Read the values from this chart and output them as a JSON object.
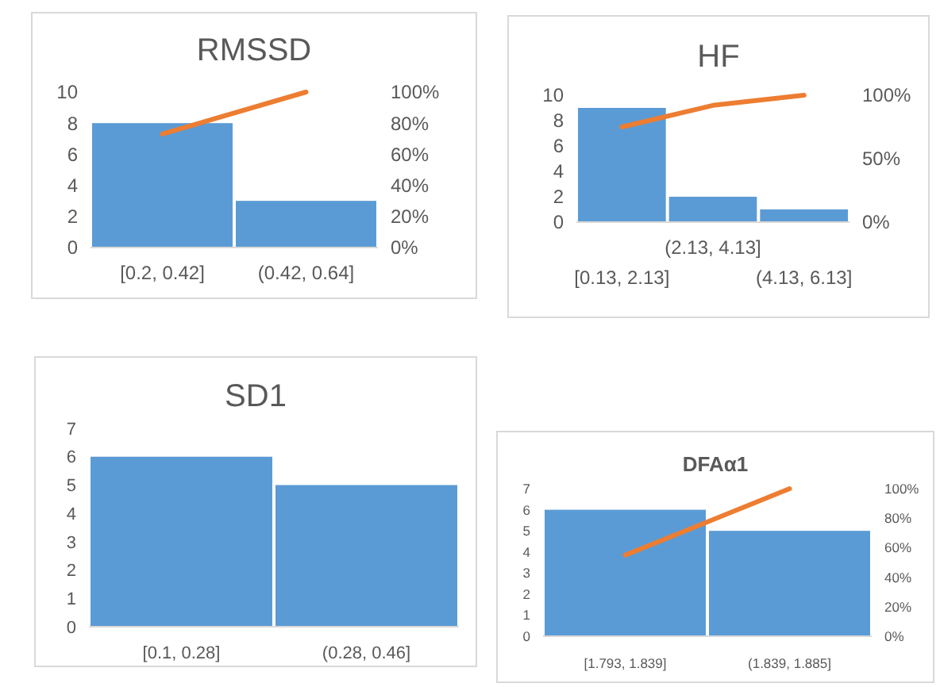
{
  "chart_data": [
    {
      "type": "bar",
      "title": "RMSSD",
      "categories": [
        "[0.2, 0.42]",
        "(0.42, 0.64]"
      ],
      "series": [
        {
          "color": "#5b9bd5",
          "values": [
            8,
            3
          ]
        },
        {
          "type": "line",
          "axis": "y2",
          "color": "#ed7d31",
          "values": [
            73,
            100
          ]
        }
      ],
      "ylim": [
        0,
        10
      ],
      "yticks": [
        0,
        2,
        4,
        6,
        8,
        10
      ],
      "y2lim": [
        0,
        100
      ],
      "y2ticks": [
        {
          "value": 0,
          "label": "0%"
        },
        {
          "value": 20,
          "label": "20%"
        },
        {
          "value": 40,
          "label": "40%"
        },
        {
          "value": 60,
          "label": "60%"
        },
        {
          "value": 80,
          "label": "80%"
        },
        {
          "value": 100,
          "label": "100%"
        }
      ]
    },
    {
      "type": "bar",
      "title": "HF",
      "categories": [
        "[0.13, 2.13]",
        "(2.13, 4.13]",
        "(4.13, 6.13]"
      ],
      "series": [
        {
          "color": "#5b9bd5",
          "values": [
            9,
            2,
            1
          ]
        },
        {
          "type": "line",
          "axis": "y2",
          "color": "#ed7d31",
          "values": [
            75,
            92,
            100
          ]
        }
      ],
      "ylim": [
        0,
        10
      ],
      "yticks": [
        0,
        2,
        4,
        6,
        8,
        10
      ],
      "y2lim": [
        0,
        100
      ],
      "y2ticks": [
        {
          "value": 0,
          "label": "0%"
        },
        {
          "value": 50,
          "label": "50%"
        },
        {
          "value": 100,
          "label": "100%"
        }
      ]
    },
    {
      "type": "bar",
      "title": "SD1",
      "categories": [
        "[0.1, 0.28]",
        "(0.28, 0.46]"
      ],
      "series": [
        {
          "color": "#5b9bd5",
          "values": [
            6,
            5
          ]
        }
      ],
      "ylim": [
        0,
        7
      ],
      "yticks": [
        0,
        1,
        2,
        3,
        4,
        5,
        6,
        7
      ]
    },
    {
      "type": "bar",
      "title": "DFAα1",
      "categories": [
        "[1.793, 1.839]",
        "(1.839, 1.885]"
      ],
      "series": [
        {
          "color": "#5b9bd5",
          "values": [
            6,
            5
          ]
        },
        {
          "type": "line",
          "axis": "y2",
          "color": "#ed7d31",
          "values": [
            55,
            100
          ]
        }
      ],
      "ylim": [
        0,
        7
      ],
      "yticks": [
        0,
        1,
        2,
        3,
        4,
        5,
        6,
        7
      ],
      "y2lim": [
        0,
        100
      ],
      "y2ticks": [
        {
          "value": 0,
          "label": "0%"
        },
        {
          "value": 20,
          "label": "20%"
        },
        {
          "value": 40,
          "label": "40%"
        },
        {
          "value": 60,
          "label": "60%"
        },
        {
          "value": 80,
          "label": "80%"
        },
        {
          "value": 100,
          "label": "100%"
        }
      ]
    }
  ]
}
